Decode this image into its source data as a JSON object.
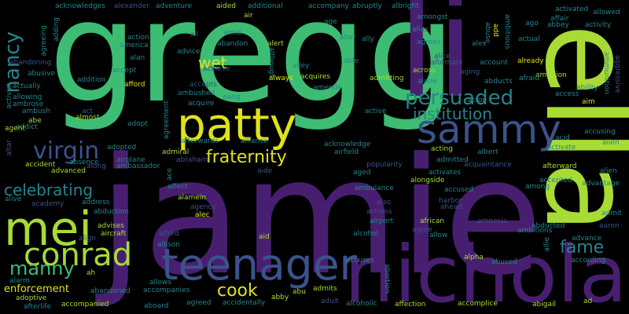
{
  "background": "#000000",
  "palette": {
    "green": "#3dbc74",
    "yellowgreen": "#a8db34",
    "yellow": "#dfe318",
    "teal": "#25858e",
    "blue": "#3b528b",
    "purple": "#481f70",
    "darkpurple": "#440154",
    "midgreen": "#35b779",
    "cyan": "#1f9e89"
  },
  "words": [
    "gregg",
    "li",
    "jamie",
    "ella",
    "nicholas",
    "patty",
    "sammy",
    "mei",
    "teenager",
    "conrad",
    "virgin",
    "persuaded",
    "institution",
    "fraternity",
    "celebrating",
    "manny",
    "fame",
    "cook",
    "nancy",
    "wet",
    "enforcement",
    "acknowledges",
    "alexander",
    "adventure",
    "aided",
    "additional",
    "accompany",
    "abruptly",
    "albright",
    "adding",
    "agreeing",
    "air",
    "age",
    "amongst",
    "affair",
    "activated",
    "allowed",
    "ago",
    "abbey",
    "activity",
    "ambitious",
    "abuse",
    "add",
    "action",
    "america",
    "alan",
    "all",
    "amid",
    "abandon",
    "alter",
    "ally",
    "alias",
    "agrees",
    "alex",
    "actual",
    "aftermath",
    "alert",
    "alley",
    "able",
    "alice",
    "account",
    "already",
    "ambition",
    "ammunition",
    "aggressive",
    "abandoning",
    "advice",
    "achieve",
    "accept",
    "acquires",
    "alternate",
    "aging",
    "afraid",
    "ability",
    "access",
    "activist",
    "actually",
    "abusive",
    "addition",
    "afford",
    "aang",
    "accepts",
    "admitting",
    "across",
    "alone",
    "abducts",
    "aim",
    "allowing",
    "ambrose",
    "amends",
    "always",
    "ambush",
    "act",
    "ambushed",
    "acquire",
    "addict",
    "although",
    "actor",
    "active",
    "accusing",
    "abe",
    "almost",
    "adopt",
    "agreement",
    "altar",
    "agent",
    "adopted",
    "admiral",
    "abraham",
    "afterwards",
    "alliance",
    "acknowledge",
    "airfield",
    "acting",
    "albert",
    "acid",
    "activate",
    "allen",
    "accident",
    "advanced",
    "airplane",
    "absence",
    "along",
    "ambassador",
    "admitted",
    "aide",
    "popularity",
    "acquaintance",
    "afterward",
    "alien",
    "activates",
    "accepted",
    "advantage",
    "among",
    "alongside",
    "alive",
    "academy",
    "address",
    "affect",
    "alamein",
    "ace",
    "aged",
    "ambulance",
    "accused",
    "abduction",
    "agency",
    "actress",
    "harbor",
    "ahead",
    "alec",
    "advises",
    "also",
    "amnesia",
    "admit",
    "aaron",
    "aircraft",
    "alfred",
    "airport",
    "african",
    "abducted",
    "allison",
    "alcohol",
    "agree",
    "allow",
    "ambitions",
    "advance",
    "align",
    "aid",
    "alpha",
    "abused",
    "allie",
    "accuses",
    "according",
    "alarm",
    "ah",
    "abortion",
    "allows",
    "adoptive",
    "abandoned",
    "accompanies",
    "abby",
    "abu",
    "admits",
    "accompanied",
    "accidentally",
    "afterlife",
    "aboard",
    "agreed",
    "adult",
    "alcoholic",
    "affection",
    "accomplice",
    "abigail",
    "ad"
  ]
}
